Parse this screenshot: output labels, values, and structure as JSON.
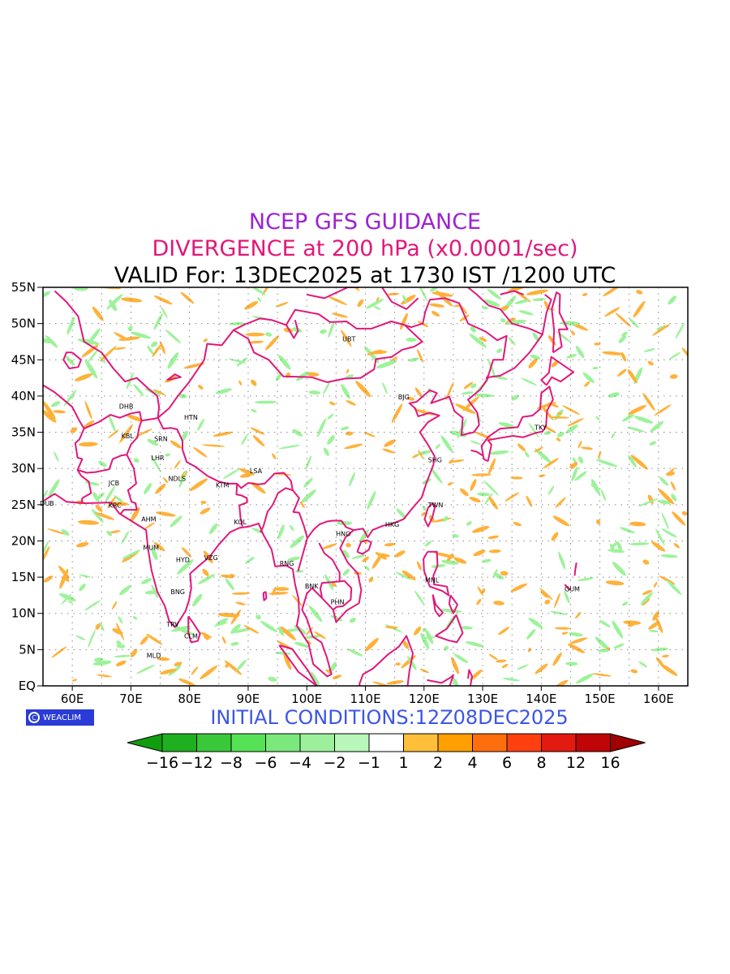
{
  "titles": {
    "line1": "NCEP GFS GUIDANCE",
    "line2": "DIVERGENCE at 200 hPa (x0.0001/sec)",
    "line3": "VALID For: 13DEC2025 at 1730 IST /1200 UTC"
  },
  "initial_conditions": "INITIAL CONDITIONS:12Z08DEC2025",
  "logo": {
    "text": "WEACLIM",
    "icon": "copyright-icon"
  },
  "axes": {
    "lat_labels": [
      "55N",
      "50N",
      "45N",
      "40N",
      "35N",
      "30N",
      "25N",
      "20N",
      "15N",
      "10N",
      "5N",
      "EQ"
    ],
    "lon_labels": [
      "60E",
      "70E",
      "80E",
      "90E",
      "100E",
      "110E",
      "120E",
      "130E",
      "140E",
      "150E",
      "160E"
    ],
    "lat_range": [
      0,
      55
    ],
    "lon_range": [
      55,
      165
    ]
  },
  "stations": [
    {
      "name": "UBT",
      "lon": 106.9,
      "lat": 47.9
    },
    {
      "name": "BJG",
      "lon": 116.4,
      "lat": 39.9
    },
    {
      "name": "TKY",
      "lon": 139.7,
      "lat": 35.7
    },
    {
      "name": "SHG",
      "lon": 121.5,
      "lat": 31.2
    },
    {
      "name": "TWN",
      "lon": 121.5,
      "lat": 25.0
    },
    {
      "name": "HKG",
      "lon": 114.2,
      "lat": 22.3
    },
    {
      "name": "HNO",
      "lon": 105.8,
      "lat": 21.0
    },
    {
      "name": "DHB",
      "lon": 68.8,
      "lat": 38.6
    },
    {
      "name": "KBL",
      "lon": 69.2,
      "lat": 34.5
    },
    {
      "name": "HTN",
      "lon": 79.9,
      "lat": 37.1
    },
    {
      "name": "SRN",
      "lon": 74.8,
      "lat": 34.1
    },
    {
      "name": "LHR",
      "lon": 74.3,
      "lat": 31.5
    },
    {
      "name": "NDLS",
      "lon": 77.2,
      "lat": 28.6
    },
    {
      "name": "KTM",
      "lon": 85.3,
      "lat": 27.7
    },
    {
      "name": "LSA",
      "lon": 91.1,
      "lat": 29.7
    },
    {
      "name": "JCB",
      "lon": 67.0,
      "lat": 28.0
    },
    {
      "name": "DUB",
      "lon": 55.3,
      "lat": 25.2
    },
    {
      "name": "KRC",
      "lon": 67.0,
      "lat": 24.9
    },
    {
      "name": "AHM",
      "lon": 72.6,
      "lat": 23.0
    },
    {
      "name": "KOL",
      "lon": 88.4,
      "lat": 22.6
    },
    {
      "name": "MUM",
      "lon": 72.9,
      "lat": 19.1
    },
    {
      "name": "HYD",
      "lon": 78.5,
      "lat": 17.4
    },
    {
      "name": "VZG",
      "lon": 83.3,
      "lat": 17.7
    },
    {
      "name": "RNG",
      "lon": 96.2,
      "lat": 16.9
    },
    {
      "name": "BNK",
      "lon": 100.5,
      "lat": 13.8
    },
    {
      "name": "PHN",
      "lon": 104.9,
      "lat": 11.6
    },
    {
      "name": "MNL",
      "lon": 121.0,
      "lat": 14.6
    },
    {
      "name": "GUM",
      "lon": 144.8,
      "lat": 13.4
    },
    {
      "name": "BNG",
      "lon": 77.6,
      "lat": 12.97
    },
    {
      "name": "TRV",
      "lon": 76.9,
      "lat": 8.5
    },
    {
      "name": "CLM",
      "lon": 79.9,
      "lat": 6.9
    },
    {
      "name": "MLD",
      "lon": 73.5,
      "lat": 4.2
    }
  ],
  "colorbar": {
    "labels": [
      "−16",
      "−12",
      "−8",
      "−6",
      "−4",
      "−2",
      "−1",
      "1",
      "2",
      "4",
      "6",
      "8",
      "12",
      "16"
    ],
    "colors": [
      "#0f9e0f",
      "#1fb01f",
      "#38c838",
      "#55e355",
      "#7be87b",
      "#9cf09c",
      "#b9f6b9",
      "#ffffff",
      "#ffbf3a",
      "#ffa000",
      "#ff6e0c",
      "#ff3f10",
      "#e31a10",
      "#bf0505",
      "#a00000"
    ]
  },
  "field_colors": {
    "coast": "#e0187a",
    "green": "#9df29a",
    "orange": "#ffb13a"
  }
}
